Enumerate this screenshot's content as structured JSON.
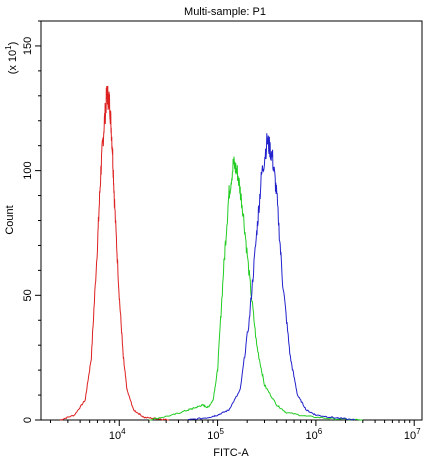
{
  "chart_data": {
    "type": "line",
    "title": "Multi-sample: P1",
    "xlabel": "FITC-A",
    "ylabel": "Count",
    "y_multiplier_label": "(x 10",
    "y_multiplier_exp": "1",
    "x_scale": "log",
    "xlim": [
      1600,
      12000000
    ],
    "ylim": [
      0,
      160
    ],
    "x_ticks": [
      {
        "value": 10000,
        "base": "10",
        "exp": "4"
      },
      {
        "value": 100000,
        "base": "10",
        "exp": "5"
      },
      {
        "value": 1000000,
        "base": "10",
        "exp": "6"
      },
      {
        "value": 10000000,
        "base": "10",
        "exp": "7"
      }
    ],
    "y_ticks": [
      0,
      50,
      100,
      150
    ],
    "grid": false,
    "series": [
      {
        "color": "#dd2020",
        "x": [
          2500,
          3500,
          4500,
          5200,
          6000,
          6500,
          7000,
          7500,
          8000,
          8500,
          9000,
          10000,
          11000,
          12000,
          14000,
          18000,
          25000,
          32000
        ],
        "y": [
          0,
          2,
          8,
          25,
          70,
          100,
          118,
          131,
          127,
          110,
          85,
          50,
          25,
          12,
          4,
          1,
          0.5,
          0
        ]
      },
      {
        "color": "#22cc22",
        "x": [
          20000,
          35000,
          50000,
          60000,
          70000,
          80000,
          90000,
          100000,
          115000,
          130000,
          145000,
          160000,
          180000,
          210000,
          250000,
          300000,
          400000,
          500000,
          800000,
          1500000,
          3000000
        ],
        "y": [
          0,
          2,
          4,
          5,
          6,
          5,
          8,
          20,
          60,
          90,
          103,
          99,
          85,
          58,
          30,
          14,
          6,
          3,
          1.5,
          0.5,
          0
        ]
      },
      {
        "color": "#2222cc",
        "x": [
          50000,
          80000,
          100000,
          130000,
          170000,
          210000,
          250000,
          280000,
          320000,
          360000,
          400000,
          460000,
          550000,
          650000,
          800000,
          1000000,
          1500000,
          2500000
        ],
        "y": [
          0,
          1,
          2,
          4,
          12,
          40,
          75,
          98,
          112,
          106,
          90,
          55,
          25,
          10,
          4,
          2,
          1,
          0
        ]
      }
    ]
  }
}
